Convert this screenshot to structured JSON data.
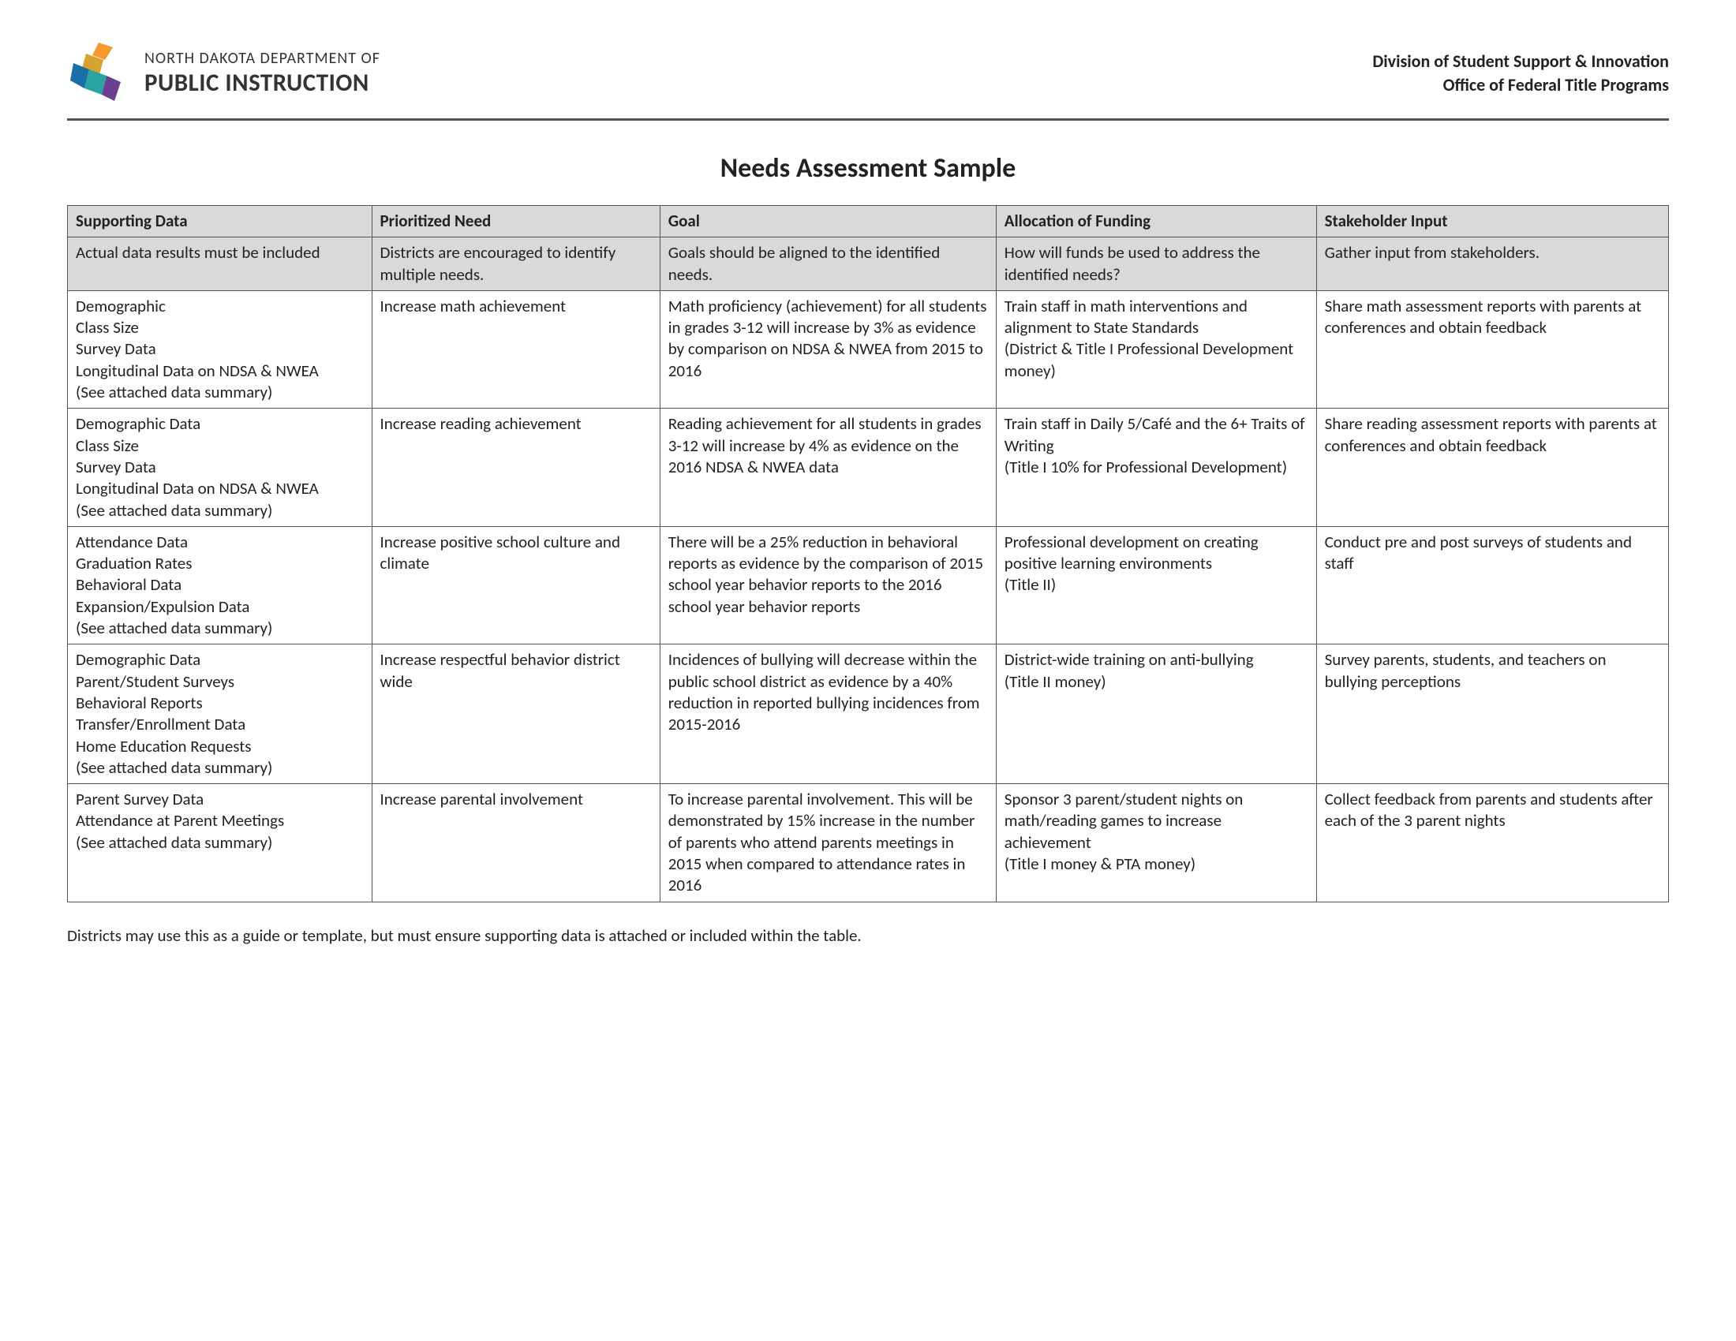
{
  "header": {
    "org_line1": "NORTH DAKOTA DEPARTMENT OF",
    "org_line2": "PUBLIC INSTRUCTION",
    "right_line1": "Division of Student Support & Innovation",
    "right_line2": "Office of Federal Title Programs",
    "logo_colors": {
      "orange": "#f59b2d",
      "teal": "#2aa3a3",
      "purple": "#6a3f8f",
      "blue": "#1c6ea8",
      "gold": "#d6a32e"
    }
  },
  "title": "Needs Assessment Sample",
  "table": {
    "columns": [
      "Supporting Data",
      "Prioritized Need",
      "Goal",
      "Allocation of Funding",
      "Stakeholder Input"
    ],
    "description_row": [
      "Actual data results must be included",
      "Districts are encouraged to identify multiple needs.",
      "Goals should be aligned to the identified needs.",
      "How will funds be used to address the identified needs?",
      "Gather input from stakeholders."
    ],
    "rows": [
      [
        "Demographic\nClass Size\nSurvey Data\nLongitudinal Data on NDSA & NWEA\n(See attached data summary)",
        "Increase math achievement",
        "Math proficiency (achievement) for all students in grades 3-12 will increase by 3% as evidence by comparison on NDSA & NWEA from 2015 to 2016",
        "Train staff in math interventions and alignment to State Standards\n(District & Title I Professional Development money)",
        "Share math assessment reports with parents at conferences and obtain feedback"
      ],
      [
        "Demographic Data\nClass Size\nSurvey Data\nLongitudinal Data on NDSA & NWEA\n(See attached data summary)",
        "Increase reading achievement",
        "Reading achievement for all students in grades 3-12 will increase by 4% as evidence on the 2016 NDSA & NWEA data",
        "Train staff in Daily 5/Café and the 6+ Traits of Writing\n(Title I 10% for Professional Development)",
        "Share reading assessment reports with parents at conferences and obtain feedback"
      ],
      [
        "Attendance Data\nGraduation Rates\nBehavioral Data\nExpansion/Expulsion Data\n(See attached data summary)",
        "Increase positive school culture and climate",
        "There will be a 25% reduction in behavioral reports as evidence by the comparison of 2015 school year behavior reports to the 2016 school year behavior reports",
        "Professional development on creating positive learning environments\n(Title II)",
        "Conduct pre and post surveys of students and staff"
      ],
      [
        "Demographic Data\nParent/Student Surveys\nBehavioral Reports\nTransfer/Enrollment Data\nHome Education Requests\n(See attached data summary)",
        "Increase respectful behavior district wide",
        "Incidences of bullying will decrease within the public school district as evidence by a 40% reduction in reported bullying incidences from 2015-2016",
        "District-wide training on anti-bullying\n(Title II money)",
        "Survey parents, students, and teachers on bullying perceptions"
      ],
      [
        "Parent Survey Data\nAttendance at Parent Meetings\n(See attached data summary)",
        "Increase parental involvement",
        "To increase parental involvement. This will be demonstrated by 15% increase in the number of parents who attend parents meetings in 2015 when compared to attendance rates in 2016",
        "Sponsor 3 parent/student nights on math/reading games to increase achievement\n(Title I money & PTA money)",
        "Collect feedback from parents and students after each of the 3 parent nights"
      ]
    ]
  },
  "footer_note": "Districts may use this as a guide or template, but must ensure supporting data is attached or included within the table."
}
